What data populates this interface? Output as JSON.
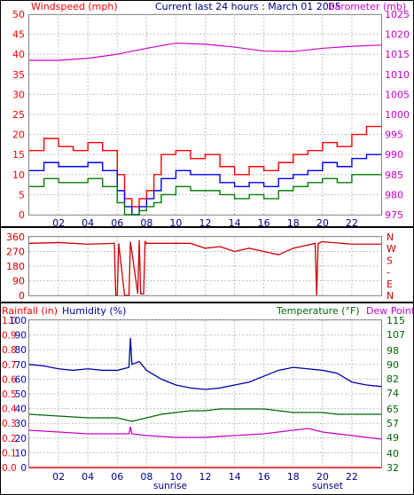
{
  "header": {
    "left": "Windspeed (mph)",
    "center": "Current last 24 hours : March 01 2005",
    "right": "Barometer (mb)"
  },
  "hour_labels": [
    "02",
    "04",
    "06",
    "08",
    "10",
    "12",
    "14",
    "16",
    "18",
    "20",
    "22"
  ],
  "sunrise_label": "sunrise",
  "sunset_label": "sunset",
  "colors": {
    "wind_gust": "#ff0000",
    "wind_avg": "#0000ff",
    "wind_min": "#008000",
    "barometer": "#cc00cc",
    "direction": "#cc0000",
    "rain": "#ff0000",
    "humidity": "#0000aa",
    "temperature": "#006600",
    "dew_point": "#cc00cc",
    "grid": "#c0c0c0"
  },
  "bottom_header": {
    "rainfall": "Rainfall (in)",
    "humidity": "Humidity (%)",
    "temperature": "Temperature (°F)",
    "dew_point": "Dew Point"
  },
  "chart_data": [
    {
      "type": "line",
      "title": "Current last 24 hours : March 01 2005",
      "x_ticks": [
        "02",
        "04",
        "06",
        "08",
        "10",
        "12",
        "14",
        "16",
        "18",
        "20",
        "22"
      ],
      "xlim": [
        0,
        24
      ],
      "left_axis": {
        "label": "Windspeed (mph)",
        "ylim": [
          0,
          50
        ],
        "ticks": [
          0,
          5,
          10,
          15,
          20,
          25,
          30,
          35,
          40,
          45,
          50
        ]
      },
      "right_axis": {
        "label": "Barometer (mb)",
        "ylim": [
          975,
          1025
        ],
        "ticks": [
          975,
          980,
          985,
          990,
          995,
          1000,
          1005,
          1010,
          1015,
          1020,
          1025
        ]
      },
      "series": [
        {
          "axis": "left",
          "color": "#ff0000",
          "x": [
            0,
            1,
            2,
            3,
            4,
            5,
            6,
            6.5,
            7,
            7.5,
            8,
            8.5,
            9,
            10,
            11,
            12,
            13,
            14,
            15,
            16,
            17,
            18,
            19,
            20,
            21,
            22,
            23,
            24
          ],
          "values": [
            16,
            19,
            17,
            16,
            18,
            16,
            10,
            4,
            2,
            4,
            6,
            10,
            15,
            16,
            14,
            15,
            12,
            10,
            12,
            11,
            13,
            15,
            16,
            18,
            17,
            20,
            22,
            23
          ]
        },
        {
          "axis": "left",
          "color": "#0000ff",
          "x": [
            0,
            1,
            2,
            3,
            4,
            5,
            6,
            6.5,
            7,
            7.5,
            8,
            8.5,
            9,
            10,
            11,
            12,
            13,
            14,
            15,
            16,
            17,
            18,
            19,
            20,
            21,
            22,
            23,
            24
          ],
          "values": [
            11,
            13,
            12,
            12,
            13,
            11,
            6,
            2,
            0,
            2,
            4,
            6,
            9,
            11,
            10,
            10,
            8,
            7,
            8,
            7,
            9,
            10,
            11,
            13,
            12,
            14,
            15,
            15
          ]
        },
        {
          "axis": "left",
          "color": "#008000",
          "x": [
            0,
            1,
            2,
            3,
            4,
            5,
            6,
            6.5,
            7,
            7.5,
            8,
            8.5,
            9,
            10,
            11,
            12,
            13,
            14,
            15,
            16,
            17,
            18,
            19,
            20,
            21,
            22,
            23,
            24
          ],
          "values": [
            7,
            9,
            8,
            8,
            9,
            7,
            3,
            0,
            0,
            1,
            2,
            3,
            5,
            7,
            6,
            6,
            5,
            4,
            5,
            4,
            6,
            7,
            8,
            9,
            8,
            10,
            10,
            10
          ]
        },
        {
          "axis": "right",
          "color": "#cc00cc",
          "x": [
            0,
            2,
            4,
            6,
            8,
            10,
            12,
            14,
            16,
            18,
            20,
            22,
            24
          ],
          "values": [
            1013.5,
            1013.5,
            1014,
            1015,
            1016.5,
            1017.8,
            1017.5,
            1016.8,
            1015.8,
            1015.7,
            1016.5,
            1017,
            1017.3
          ]
        }
      ]
    },
    {
      "type": "line",
      "title": "",
      "x_ticks": [
        "02",
        "04",
        "06",
        "08",
        "10",
        "12",
        "14",
        "16",
        "18",
        "20",
        "22"
      ],
      "xlim": [
        0,
        24
      ],
      "left_axis": {
        "ylim": [
          0,
          360
        ],
        "ticks": [
          0,
          90,
          180,
          270,
          360
        ]
      },
      "right_axis": {
        "labels": [
          "N",
          "W",
          "S",
          "-",
          "E",
          "N"
        ]
      },
      "series": [
        {
          "color": "#cc0000",
          "x": [
            0,
            2,
            4,
            5.8,
            5.9,
            6.0,
            6.1,
            6.5,
            6.8,
            6.9,
            7.4,
            7.5,
            7.6,
            7.8,
            7.9,
            8,
            9,
            11,
            12,
            13,
            14,
            15,
            16,
            17,
            18,
            19.5,
            19.6,
            19.7,
            20,
            22,
            24
          ],
          "values": [
            320,
            325,
            315,
            320,
            0,
            0,
            320,
            0,
            0,
            330,
            10,
            340,
            10,
            10,
            330,
            320,
            320,
            320,
            290,
            300,
            270,
            290,
            270,
            250,
            290,
            320,
            0,
            320,
            330,
            315,
            315
          ]
        }
      ]
    },
    {
      "type": "line",
      "title": "",
      "x_ticks": [
        "02",
        "04",
        "06",
        "08",
        "10",
        "12",
        "14",
        "16",
        "18",
        "20",
        "22"
      ],
      "xlim": [
        0,
        24
      ],
      "left_axis_rain": {
        "label": "Rainfall (in)",
        "ylim": [
          0,
          1
        ],
        "ticks": [
          0.0,
          0.1,
          0.2,
          0.3,
          0.4,
          0.5,
          0.6,
          0.7,
          0.8,
          0.9,
          1.0
        ]
      },
      "left_axis_humidity": {
        "label": "Humidity (%)",
        "ylim": [
          0,
          100
        ],
        "ticks": [
          0,
          10,
          20,
          30,
          40,
          50,
          60,
          70,
          80,
          90,
          100
        ]
      },
      "right_axis": {
        "label": "Temperature (°F)",
        "ylim": [
          32,
          115
        ],
        "ticks": [
          32,
          40,
          49,
          57,
          65,
          74,
          82,
          90,
          98,
          107,
          115
        ]
      },
      "series": [
        {
          "name": "Humidity (%)",
          "axis": "humidity",
          "color": "#0000aa",
          "x": [
            0,
            1,
            2,
            3,
            4,
            5,
            6,
            6.8,
            6.9,
            7.0,
            7.5,
            8,
            9,
            10,
            11,
            12,
            13,
            14,
            15,
            16,
            17,
            18,
            19,
            20,
            21,
            22,
            23,
            24
          ],
          "values": [
            70,
            69,
            67,
            66,
            67,
            66,
            66,
            68,
            88,
            70,
            72,
            66,
            60,
            56,
            54,
            53,
            54,
            56,
            58,
            62,
            66,
            68,
            67,
            66,
            64,
            58,
            56,
            55
          ]
        },
        {
          "name": "Temperature (°F)",
          "axis": "right",
          "color": "#006600",
          "x": [
            0,
            2,
            4,
            6,
            7,
            8,
            9,
            10,
            11,
            12,
            13,
            14,
            15,
            16,
            17,
            18,
            19,
            20,
            21,
            22,
            23,
            24
          ],
          "values": [
            62,
            61,
            60,
            60,
            58,
            60,
            62,
            63,
            64,
            64,
            65,
            65,
            65,
            65,
            64,
            63,
            63,
            63,
            62,
            62,
            62,
            62
          ]
        },
        {
          "name": "Dew Point",
          "axis": "right",
          "color": "#cc00cc",
          "x": [
            0,
            2,
            4,
            6,
            6.8,
            6.9,
            7.0,
            8,
            10,
            12,
            14,
            16,
            18,
            19,
            20,
            22,
            24
          ],
          "values": [
            53,
            52,
            51,
            51,
            51,
            55,
            51,
            50,
            49,
            49,
            50,
            51,
            53,
            54,
            52,
            50,
            48
          ]
        },
        {
          "name": "Rainfall (in)",
          "axis": "rain",
          "color": "#ff0000",
          "x": [
            0,
            24
          ],
          "values": [
            0,
            0
          ]
        }
      ]
    }
  ]
}
